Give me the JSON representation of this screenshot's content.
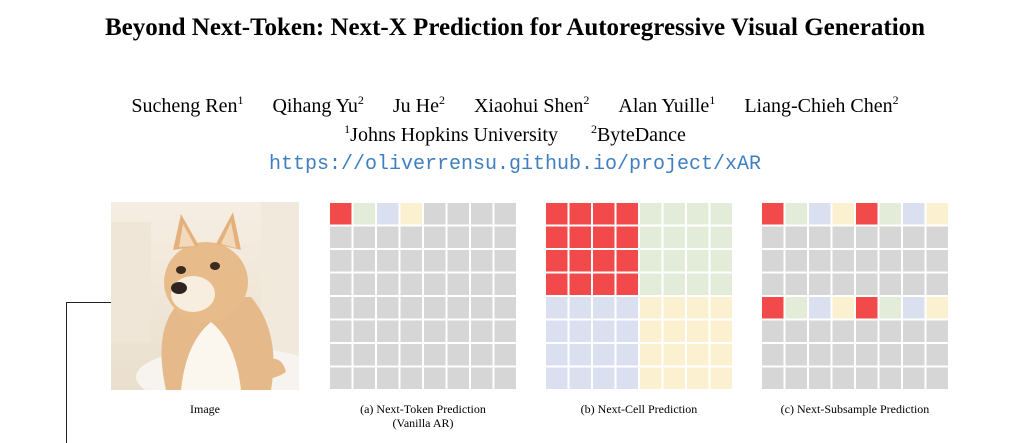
{
  "title": "Beyond Next-Token: Next-X Prediction for Autoregressive Visual Generation",
  "authors": [
    {
      "name": "Sucheng Ren",
      "aff": "1"
    },
    {
      "name": "Qihang Yu",
      "aff": "2"
    },
    {
      "name": "Ju He",
      "aff": "2"
    },
    {
      "name": "Xiaohui Shen",
      "aff": "2"
    },
    {
      "name": "Alan Yuille",
      "aff": "1"
    },
    {
      "name": "Liang-Chieh Chen",
      "aff": "2"
    }
  ],
  "affiliations": [
    {
      "num": "1",
      "name": "Johns Hopkins University"
    },
    {
      "num": "2",
      "name": "ByteDance"
    }
  ],
  "project_url": "https://oliverrensu.github.io/project/xAR",
  "colors": {
    "red": "#f24a4a",
    "green": "#e2ecd9",
    "blue": "#dbe0f0",
    "yellow": "#fbf0cf",
    "gray": "#d6d6d6"
  },
  "figure": {
    "image_caption": "Image",
    "panels": [
      {
        "id": "a",
        "caption_line1": "(a) Next-Token Prediction",
        "caption_line2": "(Vanilla AR)"
      },
      {
        "id": "b",
        "caption_line1": "(b) Next-Cell Prediction",
        "caption_line2": ""
      },
      {
        "id": "c",
        "caption_line1": "(c) Next-Subsample Prediction",
        "caption_line2": ""
      }
    ]
  }
}
